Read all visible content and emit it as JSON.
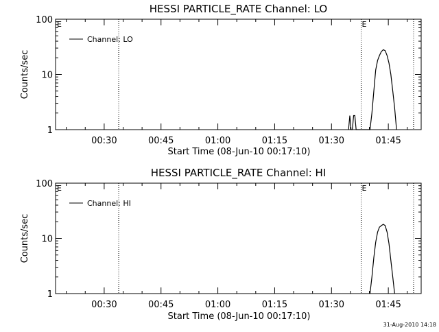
{
  "chart_data": [
    {
      "type": "line",
      "title": "HESSI PARTICLE_RATE Channel: LO",
      "xlabel": "Start Time (08-Jun-10 00:17:10)",
      "ylabel": "Counts/sec",
      "y_scale": "log",
      "ylim": [
        1,
        100
      ],
      "xlim": [
        "00:17:10",
        "01:53:40"
      ],
      "x_ticks": [
        "00:30",
        "00:45",
        "01:00",
        "01:15",
        "01:30",
        "01:45"
      ],
      "y_ticks": [
        "1",
        "10",
        "100"
      ],
      "legend": "top-left",
      "series": [
        {
          "name": "Channel: LO",
          "x": [
            "01:34:30",
            "01:34:50",
            "01:35:10",
            "01:35:30",
            "01:35:50",
            "01:36:10",
            "01:36:30",
            "01:40:10",
            "01:40:40",
            "01:41:10",
            "01:41:40",
            "01:42:10",
            "01:42:40",
            "01:43:10",
            "01:43:40",
            "01:44:10",
            "01:44:40",
            "01:45:10",
            "01:45:40",
            "01:46:10",
            "01:46:40",
            "01:47:10"
          ],
          "y": [
            1,
            1.8,
            1,
            1,
            1.8,
            1.8,
            1,
            1,
            2,
            5,
            12,
            18,
            22,
            26,
            28,
            27,
            22,
            16,
            10,
            5,
            2.5,
            1
          ]
        }
      ],
      "markers": [
        {
          "time": "00:33:50",
          "label": ""
        },
        {
          "time": "01:37:50",
          "label": "E"
        },
        {
          "time": "01:51:40",
          "label": ""
        }
      ],
      "corner_label": "E"
    },
    {
      "type": "line",
      "title": "HESSI PARTICLE_RATE Channel: HI",
      "xlabel": "Start Time (08-Jun-10 00:17:10)",
      "ylabel": "Counts/sec",
      "y_scale": "log",
      "ylim": [
        1,
        100
      ],
      "xlim": [
        "00:17:10",
        "01:53:40"
      ],
      "x_ticks": [
        "00:30",
        "00:45",
        "01:00",
        "01:15",
        "01:30",
        "01:45"
      ],
      "y_ticks": [
        "1",
        "10",
        "100"
      ],
      "legend": "top-left",
      "series": [
        {
          "name": "Channel: HI",
          "x": [
            "01:40:10",
            "01:40:40",
            "01:41:10",
            "01:41:40",
            "01:42:10",
            "01:42:40",
            "01:43:10",
            "01:43:40",
            "01:44:10",
            "01:44:40",
            "01:45:10",
            "01:45:40",
            "01:46:10",
            "01:46:40"
          ],
          "y": [
            1,
            2,
            4.5,
            8.5,
            13,
            16,
            17,
            18,
            17,
            13,
            8,
            4,
            2,
            1
          ]
        }
      ],
      "markers": [
        {
          "time": "00:33:50",
          "label": ""
        },
        {
          "time": "01:37:50",
          "label": "E"
        },
        {
          "time": "01:51:40",
          "label": ""
        }
      ],
      "corner_label": "E"
    }
  ],
  "footer": {
    "timestamp": "31-Aug-2010 14:18"
  },
  "colors": {
    "background": "#ffffff",
    "foreground": "#000000"
  }
}
